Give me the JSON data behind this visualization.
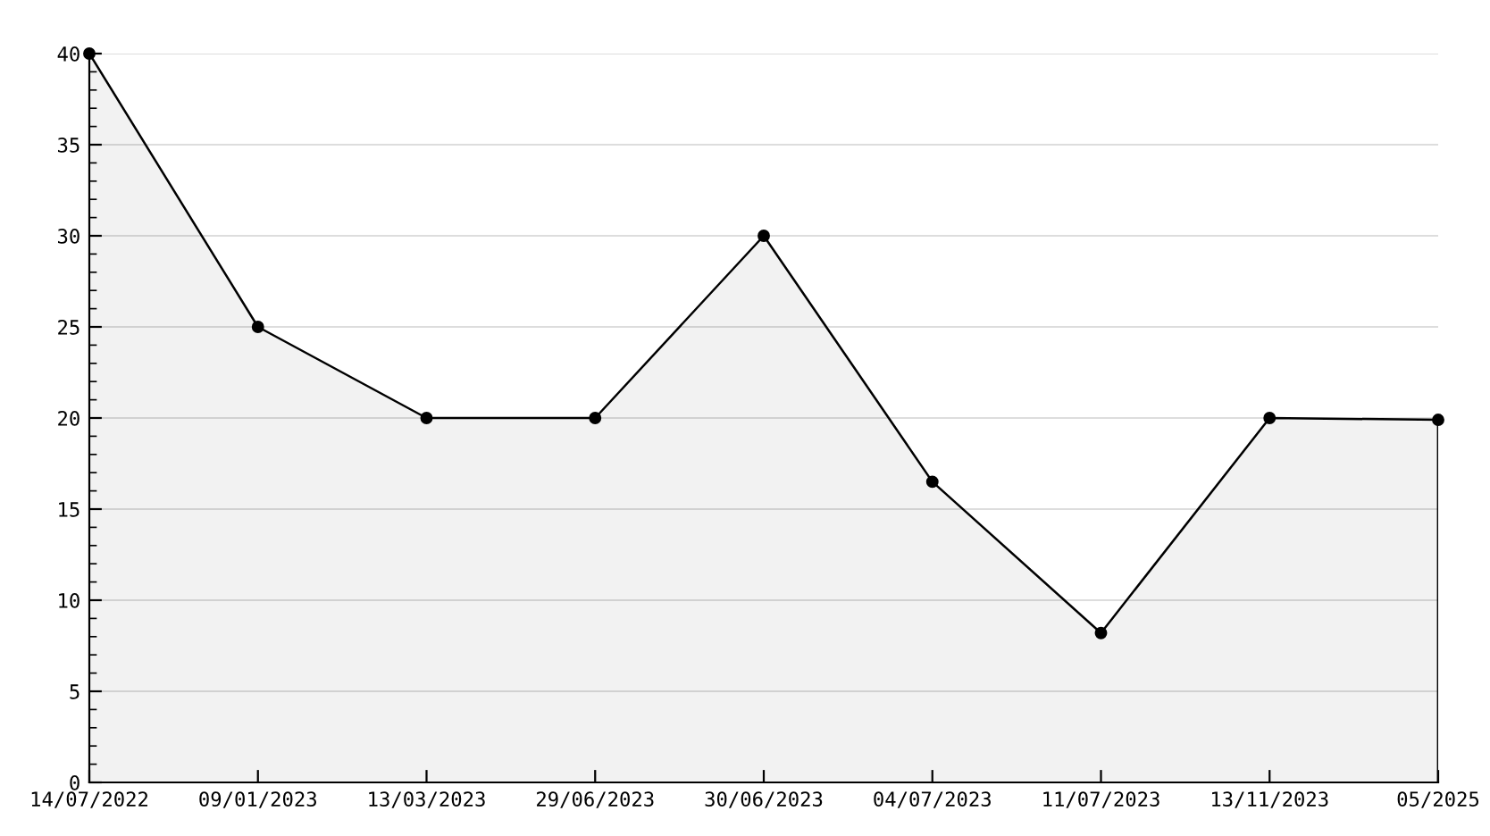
{
  "chart_data": {
    "type": "area",
    "categories": [
      "14/07/2022",
      "09/01/2023",
      "13/03/2023",
      "29/06/2023",
      "30/06/2023",
      "04/07/2023",
      "11/07/2023",
      "13/11/2023",
      "05/2025"
    ],
    "series": [
      {
        "color": "#000000",
        "values": [
          40,
          25,
          20,
          20,
          30,
          16.5,
          8.2,
          20,
          19.9
        ]
      }
    ],
    "ylim": [
      0,
      40
    ],
    "yticks": [
      0,
      5,
      10,
      15,
      20,
      25,
      30,
      35,
      40
    ],
    "grid": "y",
    "marker": "circle",
    "line_style": "solid",
    "legend": false
  }
}
